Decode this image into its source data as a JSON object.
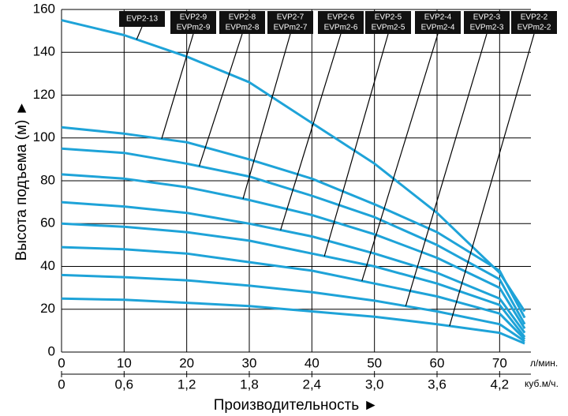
{
  "chart_data": {
    "type": "line",
    "y_label": "Высота подъема (м) ►",
    "x_label": "Производительность ►",
    "x_unit": "л/мин.",
    "x2_unit": "куб.м/ч.",
    "x": [
      0,
      10,
      20,
      30,
      40,
      50,
      60,
      70,
      74
    ],
    "xlim": [
      0,
      75
    ],
    "xticks": [
      0,
      10,
      20,
      30,
      40,
      50,
      60,
      70
    ],
    "x2lim": [
      0,
      4.5
    ],
    "x2ticks": [
      0,
      {
        "value": 0.6,
        "label": "0,6"
      },
      {
        "value": 1.2,
        "label": "1,2"
      },
      {
        "value": 1.8,
        "label": "1,8"
      },
      {
        "value": 2.4,
        "label": "2,4"
      },
      {
        "value": 3.0,
        "label": "3,0"
      },
      {
        "value": 3.6,
        "label": "3,6"
      },
      {
        "value": 4.2,
        "label": "4,2"
      }
    ],
    "ylim": [
      0,
      160
    ],
    "yticks": [
      0,
      20,
      40,
      60,
      80,
      100,
      120,
      140,
      160
    ],
    "grid": true,
    "series": [
      {
        "name": "EVP2-13",
        "color": "#1ea3d8",
        "values": [
          155,
          148,
          138,
          126,
          107,
          88,
          65,
          37,
          19
        ]
      },
      {
        "name": "EVP2-9",
        "name2": "EVPm2-9",
        "color": "#1ea3d8",
        "values": [
          105,
          102,
          98,
          90,
          81,
          69,
          56,
          38,
          16
        ]
      },
      {
        "name": "EVP2-8",
        "name2": "EVPm2-8",
        "color": "#1ea3d8",
        "values": [
          95,
          93,
          88,
          82,
          73,
          63,
          50,
          34,
          13
        ]
      },
      {
        "name": "EVP2-7",
        "name2": "EVPm2-7",
        "color": "#1ea3d8",
        "values": [
          83,
          81,
          77,
          71,
          64,
          55,
          44,
          30,
          11
        ]
      },
      {
        "name": "EVP2-6",
        "name2": "EVPm2-6",
        "color": "#1ea3d8",
        "values": [
          70,
          68,
          65,
          60,
          54,
          46,
          37,
          25,
          9
        ]
      },
      {
        "name": "EVP2-5",
        "name2": "EVPm2-5",
        "color": "#1ea3d8",
        "values": [
          60,
          58.5,
          56,
          52,
          46,
          40,
          32,
          22,
          7
        ]
      },
      {
        "name": "EVP2-4",
        "name2": "EVPm2-4",
        "color": "#1ea3d8",
        "values": [
          49,
          48,
          46,
          42,
          38,
          32,
          26,
          18,
          6
        ]
      },
      {
        "name": "EVP2-3",
        "name2": "EVPm2-3",
        "color": "#1ea3d8",
        "values": [
          36,
          35,
          33.5,
          31,
          28,
          24,
          19,
          13,
          5
        ]
      },
      {
        "name": "EVP2-2",
        "name2": "EVPm2-2",
        "color": "#1ea3d8",
        "values": [
          25,
          24.4,
          23,
          21.5,
          19,
          16.5,
          13,
          9,
          4
        ]
      }
    ]
  }
}
